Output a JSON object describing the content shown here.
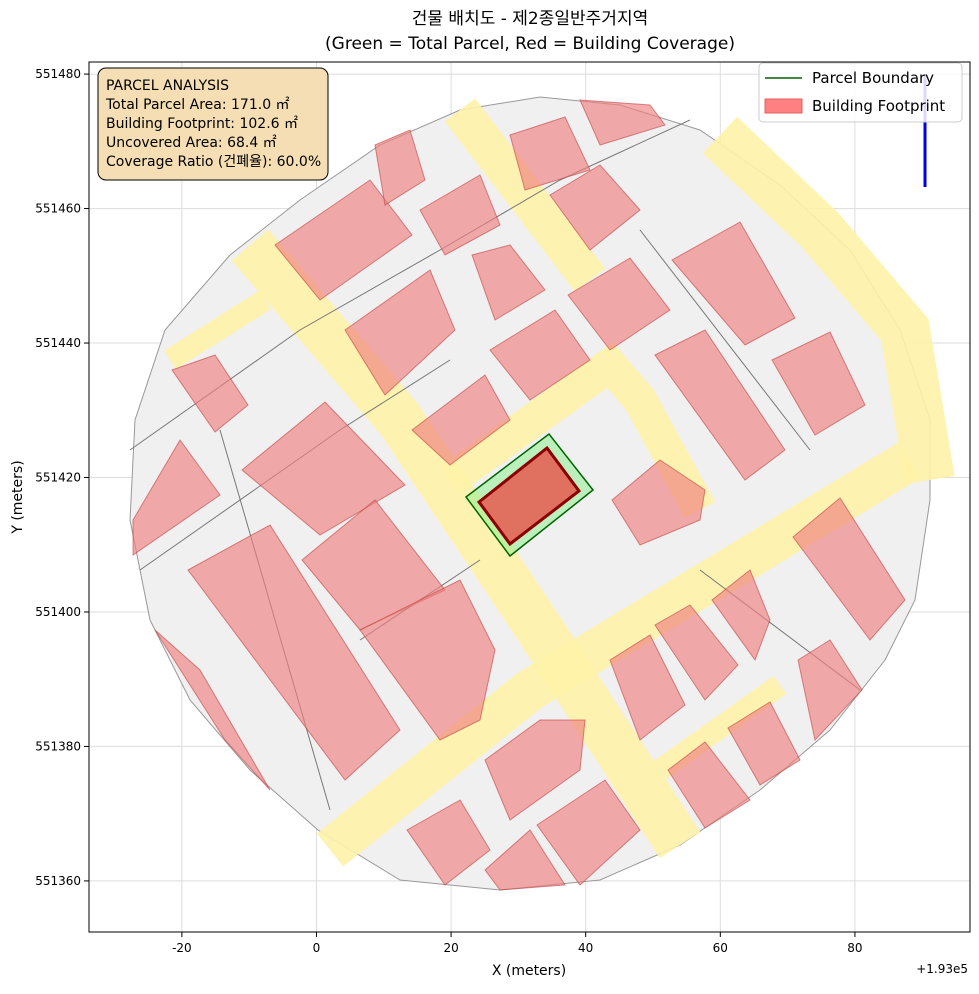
{
  "chart_data": {
    "type": "map",
    "title": "건물 배치도 - 제2종일반주거지역",
    "subtitle": "(Green = Total Parcel, Red = Building Coverage)",
    "xlabel": "X (meters)",
    "ylabel": "Y (meters)",
    "x_offset_label": "+1.93e5",
    "xlim": [
      -33.8,
      97.1
    ],
    "ylim": [
      551352.4,
      551481.8
    ],
    "xticks": [
      -20,
      0,
      20,
      40,
      60,
      80
    ],
    "yticks": [
      551360,
      551380,
      551400,
      551420,
      551440,
      551460,
      551480
    ],
    "grid": true,
    "legend": {
      "position": "upper right",
      "entries": [
        {
          "name": "Parcel Boundary",
          "color": "#006400",
          "kind": "line"
        },
        {
          "name": "Building Footprint",
          "color": "#ff8080",
          "kind": "patch"
        }
      ]
    },
    "annotation": {
      "lines": [
        "PARCEL ANALYSIS",
        "Total Parcel Area: 171.0 ㎡",
        "Building Footprint: 102.6 ㎡",
        "Uncovered Area: 68.4 ㎡",
        "Coverage Ratio (건폐율): 60.0%"
      ]
    }
  }
}
